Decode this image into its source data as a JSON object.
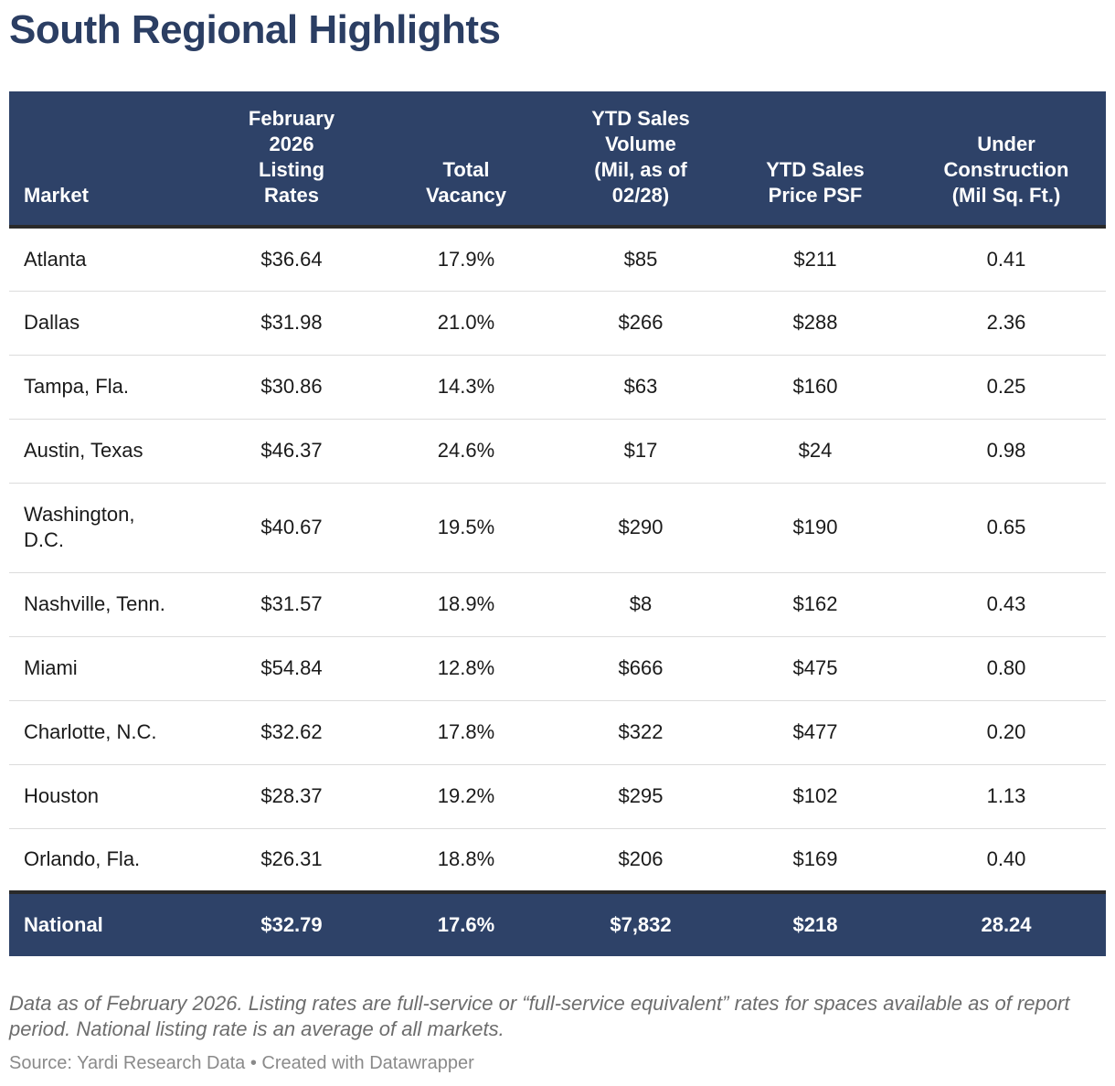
{
  "title": "South Regional Highlights",
  "chart_data": {
    "type": "table",
    "columns": [
      "Market",
      "February\n2026\nListing\nRates",
      "Total\nVacancy",
      "YTD Sales\nVolume\n(Mil, as of\n02/28)",
      "YTD Sales\nPrice PSF",
      "Under\nConstruction\n(Mil Sq. Ft.)"
    ],
    "rows": [
      [
        "Atlanta",
        "$36.64",
        "17.9%",
        "$85",
        "$211",
        "0.41"
      ],
      [
        "Dallas",
        "$31.98",
        "21.0%",
        "$266",
        "$288",
        "2.36"
      ],
      [
        "Tampa, Fla.",
        "$30.86",
        "14.3%",
        "$63",
        "$160",
        "0.25"
      ],
      [
        "Austin, Texas",
        "$46.37",
        "24.6%",
        "$17",
        "$24",
        "0.98"
      ],
      [
        "Washington,\nD.C.",
        "$40.67",
        "19.5%",
        "$290",
        "$190",
        "0.65"
      ],
      [
        "Nashville, Tenn.",
        "$31.57",
        "18.9%",
        "$8",
        "$162",
        "0.43"
      ],
      [
        "Miami",
        "$54.84",
        "12.8%",
        "$666",
        "$475",
        "0.80"
      ],
      [
        "Charlotte, N.C.",
        "$32.62",
        "17.8%",
        "$322",
        "$477",
        "0.20"
      ],
      [
        "Houston",
        "$28.37",
        "19.2%",
        "$295",
        "$102",
        "1.13"
      ],
      [
        "Orlando, Fla.",
        "$26.31",
        "18.8%",
        "$206",
        "$169",
        "0.40"
      ]
    ],
    "total_row": [
      "National",
      "$32.79",
      "17.6%",
      "$7,832",
      "$218",
      "28.24"
    ]
  },
  "note": "Data as of February 2026. Listing rates are full-service or “full-service equivalent” rates for spaces available as of report period. National listing rate is an average of all markets.",
  "source": "Source: Yardi Research Data • Created with Datawrapper",
  "colors": {
    "header_bg": "#2e4268",
    "title": "#2b3e63"
  }
}
